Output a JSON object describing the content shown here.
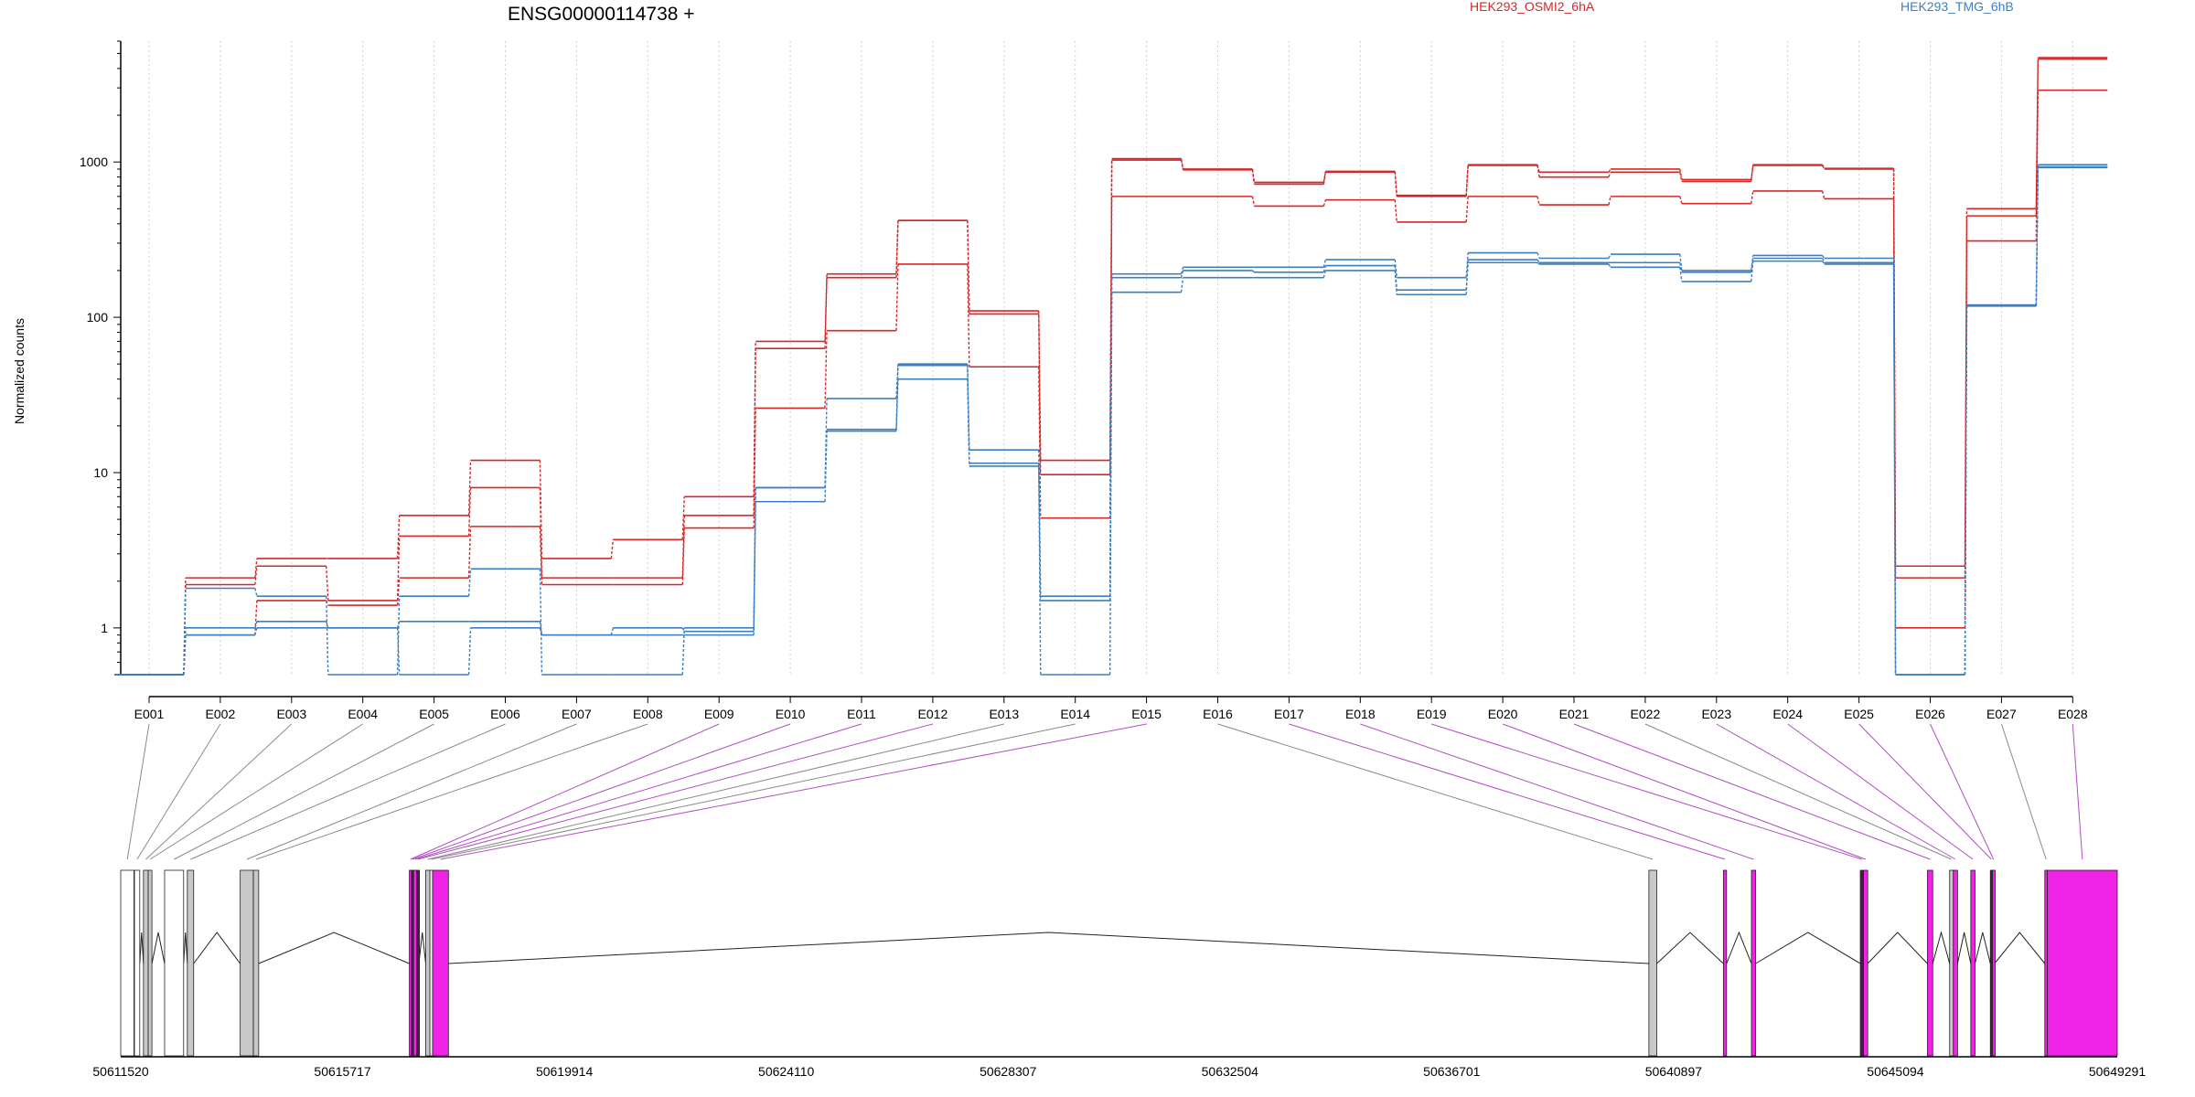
{
  "chart_data": {
    "type": "line",
    "title": "ENSG00000114738 +",
    "ylabel": "Normalized counts",
    "xlabel": "",
    "y_scale": "log",
    "y_ticks": [
      1,
      10,
      100,
      1000
    ],
    "y_tick_labels": [
      "1",
      "10",
      "100",
      "1000"
    ],
    "ylim": [
      0.5,
      6000
    ],
    "grid": "vertical dotted lines at each exon bin",
    "legend": [
      "HEK293_OSMI2_6hA",
      "HEK293_TMG_6hB"
    ],
    "legend_placement": "top",
    "colors": {
      "HEK293_OSMI2_6hA": "#d62728",
      "HEK293_TMG_6hB": "#3b7fc0"
    },
    "categories": [
      "E001",
      "E002",
      "E003",
      "E004",
      "E005",
      "E006",
      "E007",
      "E008",
      "E009",
      "E010",
      "E011",
      "E012",
      "E013",
      "E014",
      "E015",
      "E016",
      "E017",
      "E018",
      "E019",
      "E020",
      "E021",
      "E022",
      "E023",
      "E024",
      "E025",
      "E026",
      "E027",
      "E028"
    ],
    "series": [
      {
        "name": "HEK293_OSMI2_6hA",
        "values": [
          0.5,
          2.1,
          2.8,
          2.8,
          5.3,
          12,
          2.8,
          3.7,
          7,
          70,
          190,
          420,
          110,
          12,
          1050,
          900,
          740,
          870,
          610,
          960,
          860,
          900,
          770,
          960,
          910,
          2.5,
          500,
          4700
        ]
      },
      {
        "name": "HEK293_OSMI2_6hA",
        "values": [
          0.5,
          1.9,
          2.5,
          1.5,
          3.9,
          8,
          2.1,
          2.1,
          5.3,
          63,
          180,
          420,
          105,
          9.7,
          1030,
          890,
          720,
          860,
          600,
          950,
          800,
          860,
          750,
          950,
          900,
          2.1,
          450,
          4600
        ]
      },
      {
        "name": "HEK293_OSMI2_6hA",
        "values": [
          0.5,
          0.9,
          1.5,
          1.4,
          2.1,
          4.5,
          1.9,
          1.9,
          4.4,
          26,
          82,
          220,
          48,
          5.1,
          600,
          600,
          520,
          570,
          410,
          600,
          530,
          600,
          540,
          650,
          580,
          1.0,
          310,
          2900
        ]
      },
      {
        "name": "HEK293_TMG_6hB",
        "values": [
          0.5,
          1.8,
          1.6,
          0.5,
          1.6,
          2.4,
          0.5,
          0.5,
          1.0,
          8,
          30,
          50,
          14,
          1.6,
          190,
          210,
          210,
          235,
          180,
          260,
          240,
          255,
          200,
          250,
          240,
          0.5,
          120,
          960
        ]
      },
      {
        "name": "HEK293_TMG_6hB",
        "values": [
          0.5,
          1.0,
          1.1,
          1.0,
          1.1,
          1.1,
          0.9,
          1.0,
          0.95,
          8,
          19,
          49,
          11.5,
          1.5,
          180,
          200,
          195,
          215,
          150,
          235,
          225,
          225,
          195,
          240,
          225,
          0.5,
          120,
          930
        ]
      },
      {
        "name": "HEK293_TMG_6hB",
        "values": [
          0.5,
          0.9,
          1.0,
          1.0,
          0.5,
          1.0,
          0.9,
          0.9,
          0.9,
          6.5,
          18.5,
          40,
          11,
          0.5,
          145,
          180,
          180,
          200,
          140,
          225,
          220,
          210,
          170,
          230,
          220,
          0.5,
          118,
          920
        ]
      }
    ],
    "gene_model": {
      "coordinate_labels": [
        "50611520",
        "50615717",
        "50619914",
        "50624110",
        "50628307",
        "50632504",
        "50636701",
        "50640897",
        "50645094",
        "50649291"
      ],
      "range": [
        50611520,
        50649291
      ],
      "exon_bins": [
        {
          "id": "E001",
          "start": 50611520,
          "end": 50611770,
          "fill": "white"
        },
        {
          "id": "E002",
          "start": 50611780,
          "end": 50611880,
          "fill": "white"
        },
        {
          "id": "E003",
          "start": 50611950,
          "end": 50612040,
          "fill": "grey"
        },
        {
          "id": "E004",
          "start": 50612040,
          "end": 50612110,
          "fill": "grey"
        },
        {
          "id": "E005",
          "start": 50612350,
          "end": 50612710,
          "fill": "white"
        },
        {
          "id": "E006",
          "start": 50612780,
          "end": 50612900,
          "fill": "grey"
        },
        {
          "id": "E007",
          "start": 50613780,
          "end": 50614030,
          "fill": "grey"
        },
        {
          "id": "E008",
          "start": 50614030,
          "end": 50614130,
          "fill": "grey"
        },
        {
          "id": "E009",
          "start": 50616980,
          "end": 50617020,
          "fill": "magenta"
        },
        {
          "id": "E010",
          "start": 50617020,
          "end": 50617060,
          "fill": "dark"
        },
        {
          "id": "E011",
          "start": 50617060,
          "end": 50617120,
          "fill": "magenta"
        },
        {
          "id": "E012",
          "start": 50617120,
          "end": 50617160,
          "fill": "dark"
        },
        {
          "id": "E013",
          "start": 50617290,
          "end": 50617370,
          "fill": "grey"
        },
        {
          "id": "E014",
          "start": 50617370,
          "end": 50617420,
          "fill": "white"
        },
        {
          "id": "E015",
          "start": 50617420,
          "end": 50617720,
          "fill": "magenta"
        },
        {
          "id": "E016",
          "start": 50640430,
          "end": 50640580,
          "fill": "grey"
        },
        {
          "id": "E017",
          "start": 50641840,
          "end": 50641900,
          "fill": "magenta"
        },
        {
          "id": "E018",
          "start": 50642370,
          "end": 50642450,
          "fill": "magenta"
        },
        {
          "id": "E019",
          "start": 50644430,
          "end": 50644490,
          "fill": "dark"
        },
        {
          "id": "E020",
          "start": 50644490,
          "end": 50644570,
          "fill": "magenta"
        },
        {
          "id": "E021",
          "start": 50645700,
          "end": 50645800,
          "fill": "magenta"
        },
        {
          "id": "E022",
          "start": 50646120,
          "end": 50646190,
          "fill": "grey"
        },
        {
          "id": "E023",
          "start": 50646190,
          "end": 50646270,
          "fill": "magenta"
        },
        {
          "id": "E024",
          "start": 50646520,
          "end": 50646600,
          "fill": "magenta"
        },
        {
          "id": "E025",
          "start": 50646890,
          "end": 50646930,
          "fill": "dark"
        },
        {
          "id": "E026",
          "start": 50646930,
          "end": 50646970,
          "fill": "magenta"
        },
        {
          "id": "E027",
          "start": 50647920,
          "end": 50647970,
          "fill": "magenta"
        },
        {
          "id": "E028",
          "start": 50647970,
          "end": 50649291,
          "fill": "magenta"
        }
      ],
      "introns": [
        [
          50611770,
          50611780
        ],
        [
          50611880,
          50611950
        ],
        [
          50612110,
          50612350
        ],
        [
          50612710,
          50612780
        ],
        [
          50612900,
          50613780
        ],
        [
          50614130,
          50616980
        ],
        [
          50617160,
          50617290
        ],
        [
          50617720,
          50640430
        ],
        [
          50640580,
          50641840
        ],
        [
          50641900,
          50642370
        ],
        [
          50642450,
          50644430
        ],
        [
          50644570,
          50645700
        ],
        [
          50645800,
          50646120
        ],
        [
          50646270,
          50646520
        ],
        [
          50646600,
          50646890
        ],
        [
          50646970,
          50647920
        ]
      ],
      "bin_link_colors": [
        "grey",
        "grey",
        "grey",
        "grey",
        "grey",
        "grey",
        "grey",
        "grey",
        "magenta",
        "magenta",
        "magenta",
        "magenta",
        "grey",
        "grey",
        "magenta",
        "grey",
        "magenta",
        "magenta",
        "magenta",
        "magenta",
        "magenta",
        "grey",
        "magenta",
        "magenta",
        "magenta",
        "magenta",
        "grey",
        "magenta"
      ]
    }
  }
}
